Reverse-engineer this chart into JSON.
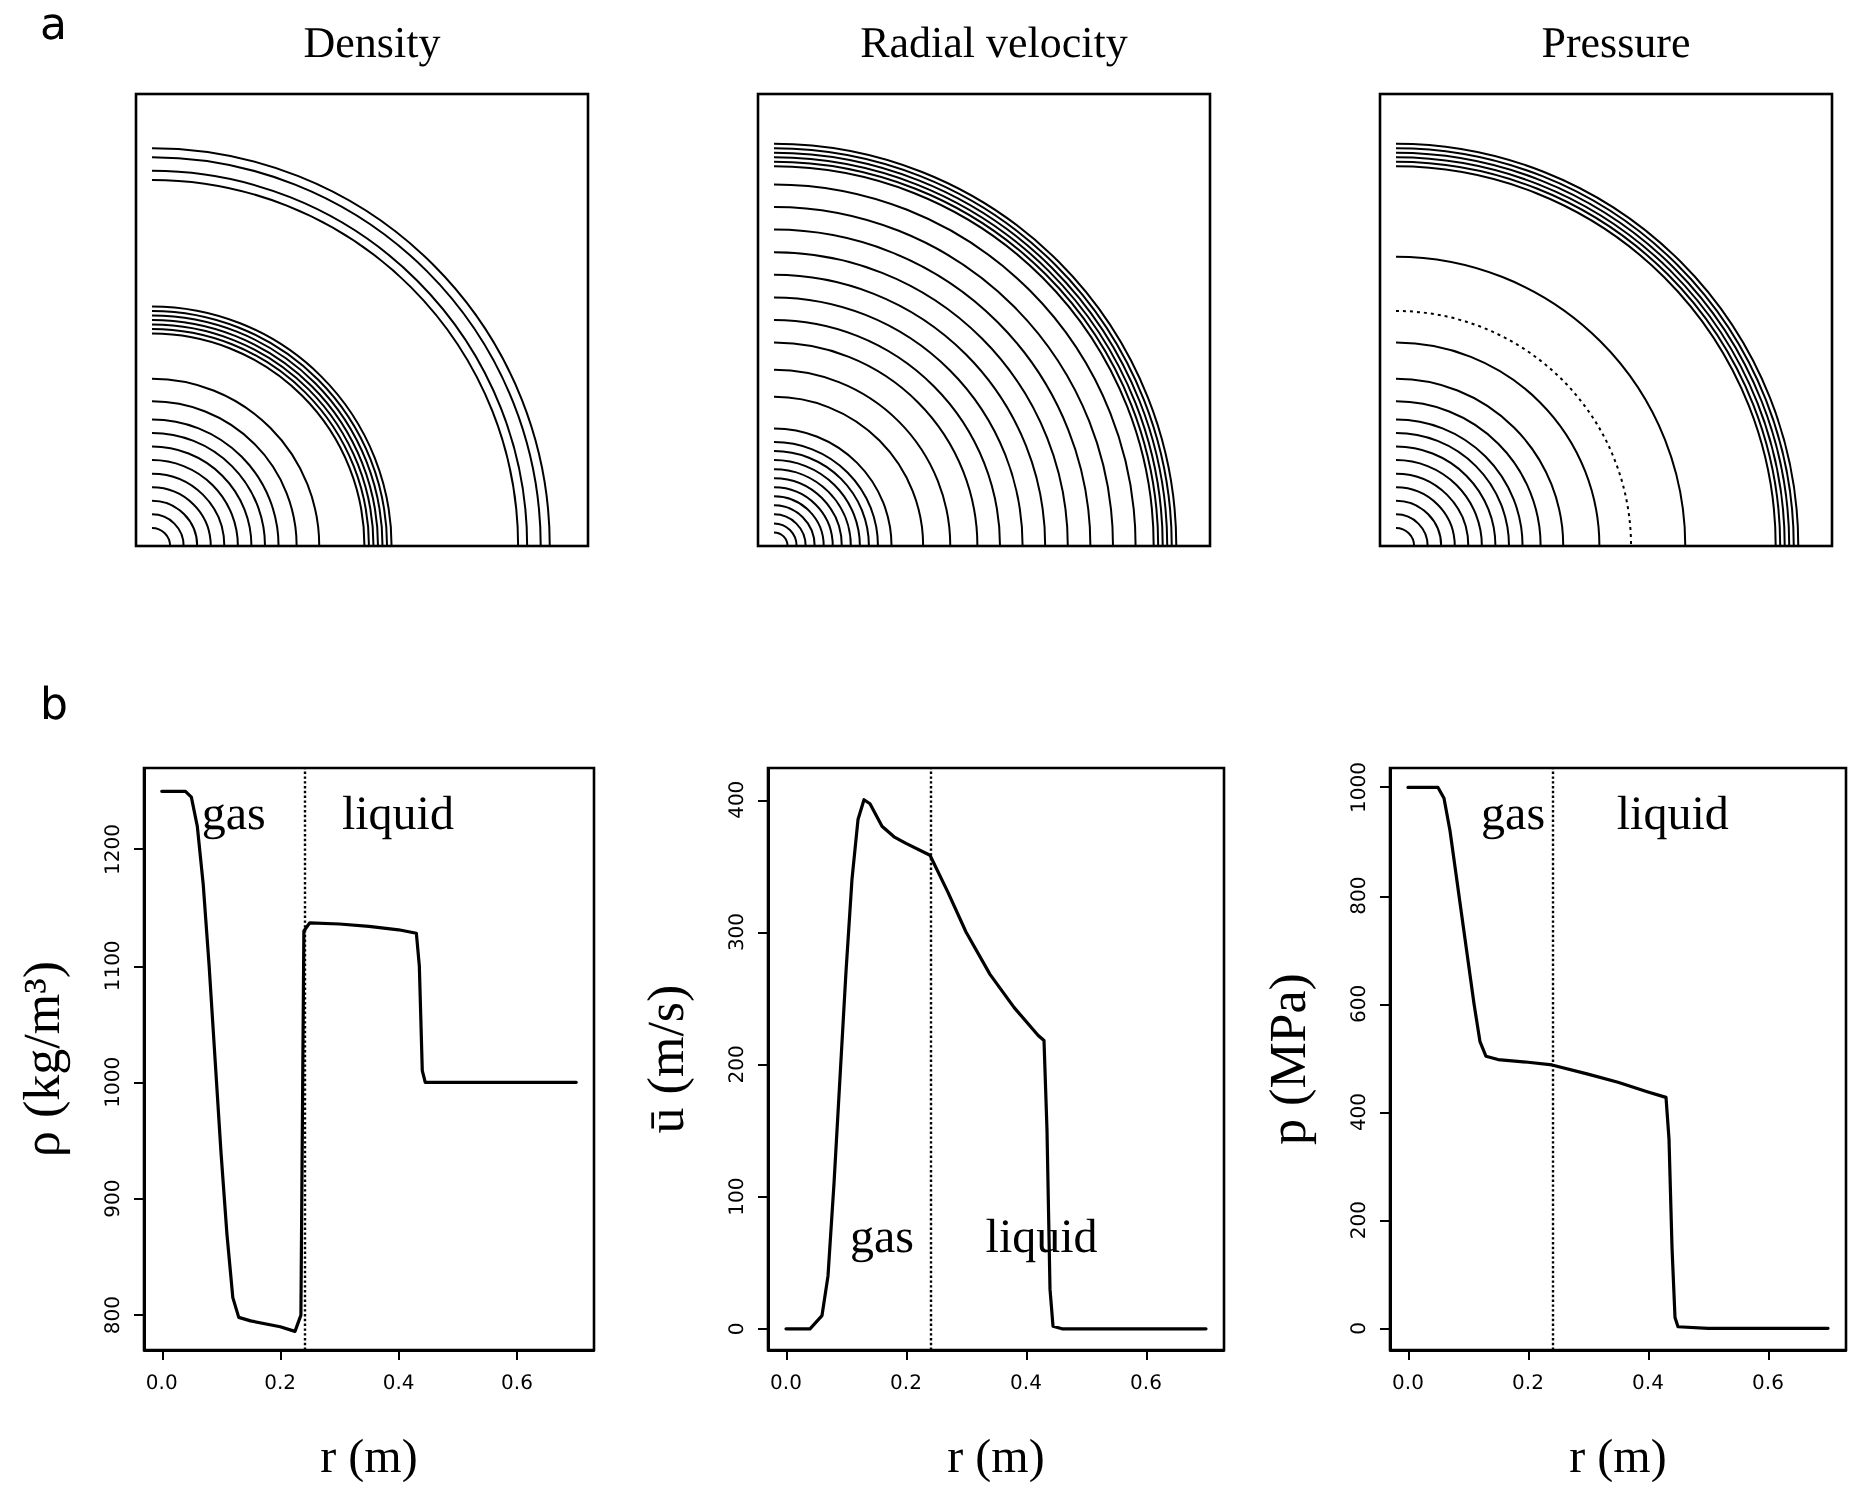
{
  "chart_data": [
    {
      "type": "other",
      "title": "Density",
      "annotations": [
        "a"
      ]
    },
    {
      "type": "other",
      "title": "Radial velocity"
    },
    {
      "type": "other",
      "title": "Pressure"
    },
    {
      "type": "line",
      "xlabel": "r (m)",
      "ylabel": "ρ (kg/m³)",
      "color": "#000000",
      "grid": false,
      "marker": "none",
      "line_style": "solid",
      "x": [
        0,
        0.04,
        0.05,
        0.06,
        0.07,
        0.08,
        0.09,
        0.1,
        0.11,
        0.12,
        0.13,
        0.15,
        0.2,
        0.225,
        0.235,
        0.24,
        0.25,
        0.3,
        0.35,
        0.4,
        0.43,
        0.435,
        0.44,
        0.445,
        0.5,
        0.7
      ],
      "values": [
        1250,
        1250,
        1245,
        1220,
        1170,
        1100,
        1020,
        940,
        870,
        815,
        798,
        795,
        790,
        786,
        800,
        1130,
        1137,
        1136,
        1134,
        1131,
        1128,
        1100,
        1010,
        1000,
        1000,
        1000
      ],
      "xlim": [
        -0.03,
        0.73
      ],
      "xticks": [
        {
          "value": 0,
          "label": "0.0"
        },
        {
          "value": 0.2,
          "label": "0.2"
        },
        {
          "value": 0.4,
          "label": "0.4"
        },
        {
          "value": 0.6,
          "label": "0.6"
        }
      ],
      "ylim": [
        770,
        1270
      ],
      "yticks": [
        800,
        900,
        1000,
        1100,
        1200
      ],
      "ref_lines": [
        {
          "axis": "x",
          "value": 0.24,
          "line_style": "dotted"
        }
      ],
      "annotations": [
        "b",
        "gas",
        "liquid"
      ]
    },
    {
      "type": "line",
      "xlabel": "r (m)",
      "ylabel": "ū (m/s)",
      "color": "#000000",
      "grid": false,
      "marker": "none",
      "line_style": "solid",
      "x": [
        0,
        0.04,
        0.06,
        0.07,
        0.08,
        0.09,
        0.1,
        0.11,
        0.12,
        0.13,
        0.14,
        0.16,
        0.18,
        0.2,
        0.24,
        0.27,
        0.3,
        0.34,
        0.38,
        0.42,
        0.43,
        0.435,
        0.44,
        0.445,
        0.46,
        0.7
      ],
      "values": [
        0,
        0,
        10,
        40,
        110,
        190,
        270,
        340,
        385,
        400,
        397,
        380,
        372,
        367,
        358,
        330,
        300,
        268,
        243,
        222,
        218,
        150,
        30,
        2,
        0,
        0
      ],
      "xlim": [
        -0.03,
        0.73
      ],
      "xticks": [
        {
          "value": 0,
          "label": "0.0"
        },
        {
          "value": 0.2,
          "label": "0.2"
        },
        {
          "value": 0.4,
          "label": "0.4"
        },
        {
          "value": 0.6,
          "label": "0.6"
        }
      ],
      "ylim": [
        -16,
        424
      ],
      "yticks": [
        0,
        100,
        200,
        300,
        400
      ],
      "ref_lines": [
        {
          "axis": "x",
          "value": 0.24,
          "line_style": "dotted"
        }
      ],
      "annotations": [
        "gas",
        "liquid"
      ]
    },
    {
      "type": "line",
      "xlabel": "r (m)",
      "ylabel": "p (MPa)",
      "color": "#000000",
      "grid": false,
      "marker": "none",
      "line_style": "solid",
      "x": [
        0,
        0.05,
        0.06,
        0.07,
        0.08,
        0.09,
        0.1,
        0.11,
        0.12,
        0.13,
        0.15,
        0.2,
        0.24,
        0.3,
        0.35,
        0.4,
        0.43,
        0.435,
        0.44,
        0.445,
        0.45,
        0.5,
        0.7
      ],
      "values": [
        1000,
        1000,
        980,
        920,
        840,
        760,
        680,
        600,
        530,
        503,
        497,
        492,
        487,
        470,
        455,
        437,
        427,
        350,
        150,
        20,
        3,
        0,
        0
      ],
      "xlim": [
        -0.03,
        0.73
      ],
      "xticks": [
        {
          "value": 0,
          "label": "0.0"
        },
        {
          "value": 0.2,
          "label": "0.2"
        },
        {
          "value": 0.4,
          "label": "0.4"
        },
        {
          "value": 0.6,
          "label": "0.6"
        }
      ],
      "ylim": [
        -40,
        1036
      ],
      "yticks": [
        0,
        200,
        400,
        600,
        800,
        1000
      ],
      "ref_lines": [
        {
          "axis": "x",
          "value": 0.24,
          "line_style": "dotted"
        }
      ],
      "annotations": [
        "gas",
        "liquid"
      ]
    }
  ]
}
